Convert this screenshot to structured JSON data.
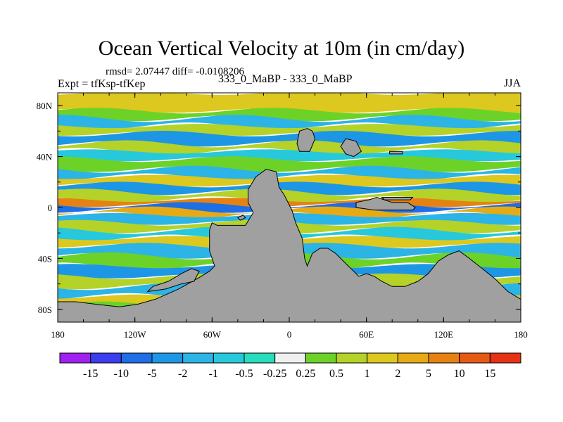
{
  "chart_data": {
    "type": "heatmap",
    "title": "Ocean Vertical Velocity at 10m (in cm/day)",
    "stats_label": "rmsd= 2.07447 diff= -0.0108206",
    "left_label": "Expt = tfKsp-tfKep",
    "center_label": "333_0_MaBP - 333_0_MaBP",
    "right_label": "JJA",
    "x_range": [
      -180,
      180
    ],
    "y_range": [
      -90,
      90
    ],
    "x_ticks": [
      -180,
      -120,
      -60,
      0,
      60,
      120,
      180
    ],
    "x_tick_labels": [
      "180",
      "120W",
      "60W",
      "0",
      "60E",
      "120E",
      "180"
    ],
    "y_ticks": [
      80,
      40,
      0,
      -40,
      -80
    ],
    "y_tick_labels": [
      "80N",
      "40N",
      "0",
      "40S",
      "80S"
    ],
    "colorbar_levels": [
      "-15",
      "-10",
      "-5",
      "-2",
      "-1",
      "-0.5",
      "-0.25",
      "0.25",
      "0.5",
      "1",
      "2",
      "5",
      "10",
      "15"
    ],
    "colorbar_colors": [
      "#a020f0",
      "#3c3cf0",
      "#1e6ee6",
      "#1e96e6",
      "#2cb4e6",
      "#28c8dc",
      "#28dcbc",
      "#f0f0f0",
      "#6cd228",
      "#b4d228",
      "#dcc81e",
      "#e6aa14",
      "#e68214",
      "#e65a14",
      "#e63214"
    ],
    "land_color": "#a0a0a0",
    "zonal_bands": [
      {
        "lat": [
          76,
          90
        ],
        "value": 2
      },
      {
        "lat": [
          70,
          76
        ],
        "value": 0.5
      },
      {
        "lat": [
          64,
          70
        ],
        "value": -1
      },
      {
        "lat": [
          58,
          64
        ],
        "value": 1
      },
      {
        "lat": [
          50,
          58
        ],
        "value": -2
      },
      {
        "lat": [
          44,
          50
        ],
        "value": 1
      },
      {
        "lat": [
          38,
          44
        ],
        "value": -0.5
      },
      {
        "lat": [
          30,
          38
        ],
        "value": 0.5
      },
      {
        "lat": [
          24,
          30
        ],
        "value": -1
      },
      {
        "lat": [
          18,
          24
        ],
        "value": 2
      },
      {
        "lat": [
          12,
          18
        ],
        "value": -2
      },
      {
        "lat": [
          6,
          12
        ],
        "value": 1
      },
      {
        "lat": [
          2,
          6
        ],
        "value": 10
      },
      {
        "lat": [
          -2,
          2
        ],
        "value": -5
      },
      {
        "lat": [
          -6,
          -2
        ],
        "value": 5
      },
      {
        "lat": [
          -12,
          -6
        ],
        "value": -1
      },
      {
        "lat": [
          -18,
          -12
        ],
        "value": 1
      },
      {
        "lat": [
          -24,
          -18
        ],
        "value": -0.5
      },
      {
        "lat": [
          -30,
          -24
        ],
        "value": 2
      },
      {
        "lat": [
          -38,
          -30
        ],
        "value": -1
      },
      {
        "lat": [
          -46,
          -38
        ],
        "value": 0.5
      },
      {
        "lat": [
          -54,
          -46
        ],
        "value": -2
      },
      {
        "lat": [
          -62,
          -54
        ],
        "value": 1
      },
      {
        "lat": [
          -70,
          -62
        ],
        "value": -1
      },
      {
        "lat": [
          -76,
          -70
        ],
        "value": 2
      },
      {
        "lat": [
          -90,
          -76
        ],
        "value": 0.5
      }
    ],
    "land_regions": [
      {
        "name": "southern-land",
        "points": [
          [
            -180,
            -90
          ],
          [
            180,
            -90
          ],
          [
            180,
            -72
          ],
          [
            170,
            -66
          ],
          [
            160,
            -56
          ],
          [
            150,
            -48
          ],
          [
            140,
            -40
          ],
          [
            132,
            -34
          ],
          [
            124,
            -37
          ],
          [
            116,
            -42
          ],
          [
            108,
            -52
          ],
          [
            100,
            -58
          ],
          [
            90,
            -62
          ],
          [
            80,
            -62
          ],
          [
            72,
            -58
          ],
          [
            66,
            -54
          ],
          [
            60,
            -52
          ],
          [
            54,
            -54
          ],
          [
            48,
            -48
          ],
          [
            42,
            -42
          ],
          [
            36,
            -36
          ],
          [
            30,
            -32
          ],
          [
            24,
            -32
          ],
          [
            18,
            -36
          ],
          [
            14,
            -46
          ],
          [
            12,
            -40
          ],
          [
            10,
            -24
          ],
          [
            5,
            -12
          ],
          [
            2,
            -2
          ],
          [
            -4,
            10
          ],
          [
            -8,
            16
          ],
          [
            -10,
            28
          ],
          [
            -18,
            30
          ],
          [
            -26,
            24
          ],
          [
            -32,
            14
          ],
          [
            -32,
            4
          ],
          [
            -28,
            -4
          ],
          [
            -34,
            -14
          ],
          [
            -44,
            -14
          ],
          [
            -56,
            -14
          ],
          [
            -60,
            -12
          ],
          [
            -62,
            -18
          ],
          [
            -62,
            -34
          ],
          [
            -60,
            -40
          ],
          [
            -58,
            -46
          ],
          [
            -62,
            -50
          ],
          [
            -70,
            -55
          ],
          [
            -86,
            -64
          ],
          [
            -104,
            -72
          ],
          [
            -118,
            -76
          ],
          [
            -132,
            -78
          ],
          [
            -150,
            -76
          ],
          [
            -166,
            -74
          ],
          [
            -180,
            -74
          ]
        ]
      },
      {
        "name": "northern-continent",
        "points": [
          [
            8,
            60
          ],
          [
            14,
            62
          ],
          [
            18,
            60
          ],
          [
            20,
            54
          ],
          [
            16,
            44
          ],
          [
            8,
            44
          ],
          [
            6,
            50
          ]
        ]
      },
      {
        "name": "eastern-landmass",
        "points": [
          [
            44,
            54
          ],
          [
            52,
            52
          ],
          [
            56,
            44
          ],
          [
            50,
            40
          ],
          [
            44,
            42
          ],
          [
            40,
            48
          ]
        ]
      },
      {
        "name": "equatorial-island",
        "points": [
          [
            52,
            4
          ],
          [
            62,
            6
          ],
          [
            68,
            8
          ],
          [
            80,
            4
          ],
          [
            92,
            4
          ],
          [
            98,
            0
          ],
          [
            96,
            -2
          ],
          [
            80,
            -2
          ],
          [
            66,
            -2
          ],
          [
            52,
            0
          ]
        ]
      },
      {
        "name": "narrow-isthmus",
        "points": [
          [
            72,
            8
          ],
          [
            74,
            6
          ],
          [
            94,
            6
          ],
          [
            96,
            8
          ]
        ]
      },
      {
        "name": "peninsula",
        "points": [
          [
            -110,
            -66
          ],
          [
            -96,
            -64
          ],
          [
            -84,
            -60
          ],
          [
            -74,
            -58
          ],
          [
            -70,
            -50
          ],
          [
            -76,
            -48
          ],
          [
            -84,
            -52
          ],
          [
            -94,
            -58
          ],
          [
            -106,
            -62
          ]
        ]
      },
      {
        "name": "small-island",
        "points": [
          [
            78,
            44
          ],
          [
            88,
            44
          ],
          [
            88,
            42
          ],
          [
            78,
            42
          ]
        ]
      },
      {
        "name": "tiny-island",
        "points": [
          [
            -40,
            -8
          ],
          [
            -36,
            -6
          ],
          [
            -34,
            -8
          ],
          [
            -38,
            -10
          ]
        ]
      }
    ]
  }
}
